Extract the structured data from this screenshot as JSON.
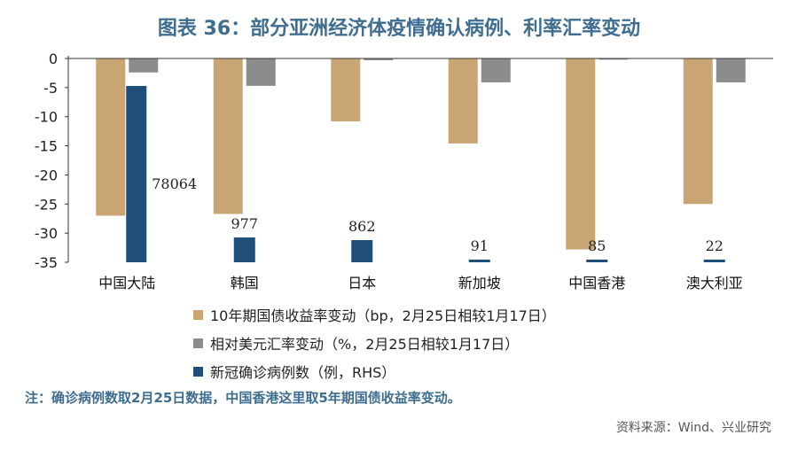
{
  "title": "图表 36：部分亚洲经济体疫情确认病例、利率汇率变动",
  "note": "注：确诊病例数取2月25日数据，中国香港这里取5年期国债收益率变动。",
  "source": "资料来源：Wind、兴业研究",
  "colors": {
    "yield": "#c9a574",
    "fx": "#8c8c8c",
    "cases": "#1f4e79",
    "title": "#3f6d8f"
  },
  "chart_data": {
    "type": "bar",
    "categories": [
      "中国大陆",
      "韩国",
      "日本",
      "新加坡",
      "中国香港",
      "澳大利亚"
    ],
    "series": [
      {
        "key": "yield",
        "name": "10年期国债收益率变动（bp，2月25日相较1月17日）",
        "axis": "left",
        "values": [
          -27,
          -26.7,
          -10.8,
          -14.6,
          -32.8,
          -25
        ]
      },
      {
        "key": "fx",
        "name": "相对美元汇率变动（%，2月25日相较1月17日）",
        "axis": "left",
        "values": [
          -2.4,
          -4.7,
          -0.3,
          -4.1,
          -0.2,
          -4.1
        ]
      },
      {
        "key": "cases",
        "name": "新冠确诊病例数（例，RHS）",
        "axis": "right",
        "values": [
          78064,
          977,
          862,
          91,
          85,
          22
        ],
        "labels": [
          "78064",
          "977",
          "862",
          "91",
          "85",
          "22"
        ]
      }
    ],
    "y_left": {
      "min": -35,
      "max": 0,
      "ticks": [
        "0",
        "-5",
        "-10",
        "-15",
        "-20",
        "-25",
        "-30",
        "-35"
      ]
    },
    "legend_position": "bottom",
    "grid": false
  }
}
